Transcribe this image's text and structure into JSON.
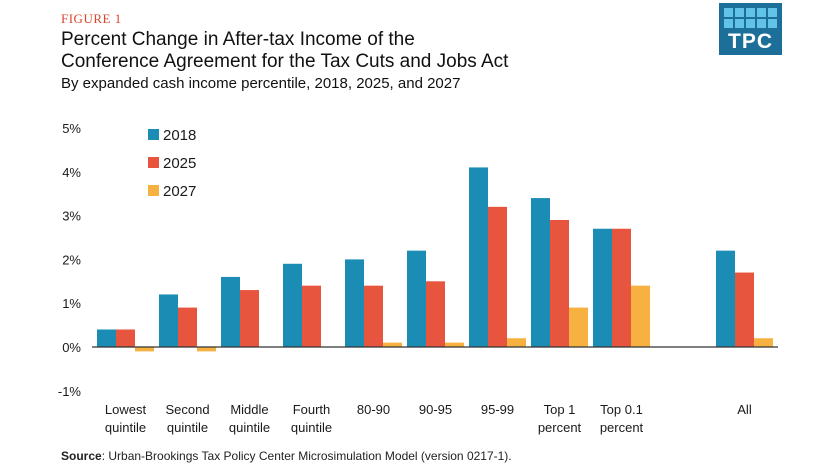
{
  "header": {
    "figure_label": "FIGURE 1",
    "title_line1": "Percent Change in After-tax Income of the",
    "title_line2": "Conference Agreement for the Tax Cuts and Jobs Act",
    "subtitle": "By expanded cash income percentile, 2018, 2025, and 2027"
  },
  "logo": {
    "text": "TPC",
    "color": "#1c6f98"
  },
  "footer": {
    "source_label": "Source",
    "source_text": ": Urban-Brookings Tax Policy Center Microsimulation Model (version 0217-1)."
  },
  "chart_data": {
    "type": "bar",
    "categories": [
      [
        "Lowest",
        "quintile"
      ],
      [
        "Second",
        "quintile"
      ],
      [
        "Middle",
        "quintile"
      ],
      [
        "Fourth",
        "quintile"
      ],
      [
        "80-90"
      ],
      [
        "90-95"
      ],
      [
        "95-99"
      ],
      [
        "Top 1",
        "percent"
      ],
      [
        "Top 0.1",
        "percent"
      ],
      [
        "All"
      ]
    ],
    "series": [
      {
        "name": "2018",
        "color": "#1b8db4",
        "values": [
          0.4,
          1.2,
          1.6,
          1.9,
          2.0,
          2.2,
          4.1,
          3.4,
          2.7,
          2.2
        ]
      },
      {
        "name": "2025",
        "color": "#e8553e",
        "values": [
          0.4,
          0.9,
          1.3,
          1.4,
          1.4,
          1.5,
          3.2,
          2.9,
          2.7,
          1.7
        ]
      },
      {
        "name": "2027",
        "color": "#f7b140",
        "values": [
          -0.1,
          -0.1,
          0.0,
          0.0,
          0.1,
          0.1,
          0.2,
          0.9,
          1.4,
          0.2
        ]
      }
    ],
    "ylim": [
      -1,
      5
    ],
    "yticks": [
      -1,
      0,
      1,
      2,
      3,
      4,
      5
    ],
    "ytick_labels": [
      "-1%",
      "0%",
      "1%",
      "2%",
      "3%",
      "4%",
      "5%"
    ],
    "grid": false,
    "legend_position": "top-left"
  }
}
